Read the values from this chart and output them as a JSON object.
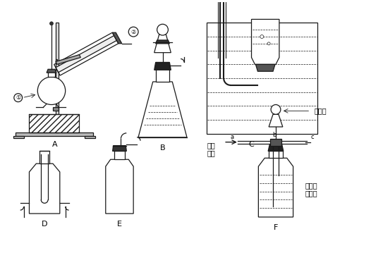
{
  "bg_color": "#ffffff",
  "label_A": "A",
  "label_B": "B",
  "label_C": "C",
  "label_D": "D",
  "label_E": "E",
  "label_F": "F",
  "label_1": "①",
  "label_2": "②",
  "text_xiao": "稀盐酸",
  "text_lim": "澄清的\n石灰水",
  "text_hun": "混合\n气体",
  "label_a": "a",
  "label_b": "b",
  "label_c": "c",
  "line_color": "#1a1a1a"
}
